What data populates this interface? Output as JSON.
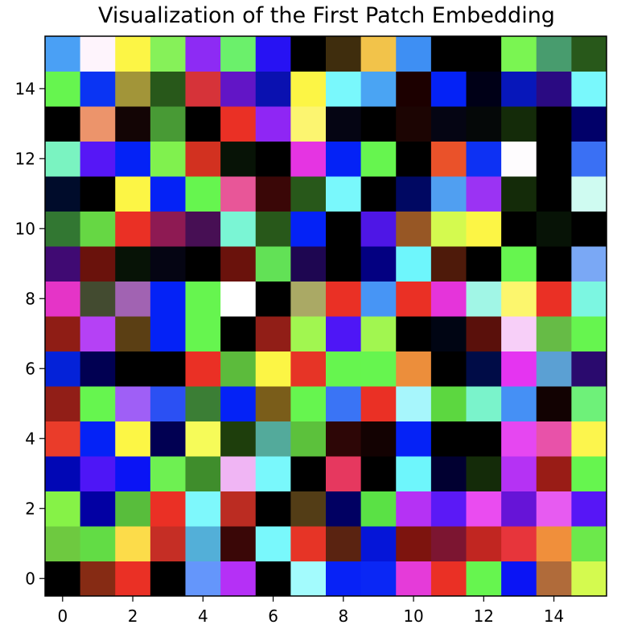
{
  "chart_data": {
    "type": "heatmap",
    "title": "Visualization of the First Patch Embedding",
    "xlabel": "",
    "ylabel": "",
    "xlim": [
      -0.5,
      15.5
    ],
    "ylim": [
      15.5,
      -0.5
    ],
    "x_ticks": [
      0,
      2,
      4,
      6,
      8,
      10,
      12,
      14
    ],
    "y_ticks": [
      0,
      2,
      4,
      6,
      8,
      10,
      12,
      14
    ],
    "grid": false,
    "rows": 16,
    "cols": 16,
    "cells": [
      [
        "#000000",
        "#862b14",
        "#ea3025",
        "#000000",
        "#6496fb",
        "#b530f6",
        "#000000",
        "#a3fbfd",
        "#0722f6",
        "#0a27f5",
        "#e53bd9",
        "#ea3025",
        "#66f54f",
        "#0a14f5",
        "#b06b3a",
        "#d4fa4f"
      ],
      [
        "#6ec940",
        "#62dc45",
        "#fcdc4a",
        "#c52e25",
        "#53afd8",
        "#3a0707",
        "#79f8fc",
        "#e63426",
        "#5a2311",
        "#0515d8",
        "#7d140e",
        "#7c1531",
        "#c12621",
        "#e7353b",
        "#f08f3b",
        "#6ce94b"
      ],
      [
        "#86f247",
        "#0200a3",
        "#58bd3c",
        "#ea3025",
        "#7ef8fc",
        "#bb2c22",
        "#000000",
        "#533d16",
        "#010062",
        "#5ae145",
        "#b532f4",
        "#5b19f6",
        "#ea4cf0",
        "#6614d7",
        "#e75bf1",
        "#5716f6"
      ],
      [
        "#0107b5",
        "#4e16f6",
        "#0a14f5",
        "#6ef052",
        "#3f8d2c",
        "#f0b5f4",
        "#79f8fc",
        "#000000",
        "#e6385f",
        "#000000",
        "#6ef6fc",
        "#010031",
        "#142b09",
        "#b532f4",
        "#991c16",
        "#66f54f"
      ],
      [
        "#ea3c2a",
        "#0422f6",
        "#fcf645",
        "#010052",
        "#f6fb59",
        "#1e3e0c",
        "#53aa9b",
        "#5cc13c",
        "#2d0606",
        "#130202",
        "#0522f6",
        "#000000",
        "#000000",
        "#e647f1",
        "#e852a9",
        "#fcf54d"
      ],
      [
        "#911e17",
        "#66f54f",
        "#9f5ff6",
        "#2b50f3",
        "#3b7e35",
        "#0422f6",
        "#7a5d1a",
        "#66f54f",
        "#3a74f5",
        "#ea3025",
        "#a7f6fc",
        "#5cd740",
        "#7af3cb",
        "#4590f5",
        "#120202",
        "#6ef179"
      ],
      [
        "#0422d8",
        "#010052",
        "#000000",
        "#000000",
        "#ea3025",
        "#5cbb3c",
        "#fcf545",
        "#e63426",
        "#66f54f",
        "#66f54f",
        "#ec8e3b",
        "#000000",
        "#000c47",
        "#e534f1",
        "#5ba0d3",
        "#2a0a6e"
      ],
      [
        "#8f1d15",
        "#b541f5",
        "#5b3f14",
        "#0422f6",
        "#66f54f",
        "#000000",
        "#911e17",
        "#a1f650",
        "#4e16f6",
        "#a1f650",
        "#000000",
        "#000513",
        "#5a100b",
        "#f7cff8",
        "#66bb46",
        "#66f54f"
      ],
      [
        "#e534c7",
        "#434b30",
        "#a163b2",
        "#0422f6",
        "#66f54f",
        "#ffffff",
        "#000000",
        "#aaa965",
        "#ea3025",
        "#4795f5",
        "#ea3025",
        "#e534da",
        "#a1f6e6",
        "#fcf66d",
        "#ea3025",
        "#7cf6e1"
      ],
      [
        "#400a73",
        "#6a120c",
        "#071306",
        "#050513",
        "#000000",
        "#6a120c",
        "#62e156",
        "#1e0651",
        "#000000",
        "#030081",
        "#6ef6fc",
        "#4e1a0a",
        "#000000",
        "#66f54f",
        "#000000",
        "#7aa8f5"
      ],
      [
        "#327732",
        "#66d744",
        "#ea3025",
        "#8e1a53",
        "#470f54",
        "#7af5d4",
        "#28581a",
        "#0422f6",
        "#000000",
        "#4e16e6",
        "#975725",
        "#d4fa4f",
        "#fcf545",
        "#000000",
        "#071306",
        "#000000"
      ],
      [
        "#000c2b",
        "#000000",
        "#fcf545",
        "#0422f6",
        "#66f54f",
        "#e85698",
        "#3a0707",
        "#28581a",
        "#79f8fc",
        "#000000",
        "#000862",
        "#509ff1",
        "#9b33f3",
        "#142b09",
        "#000000",
        "#cffbf1"
      ],
      [
        "#7af3c1",
        "#5617f6",
        "#0422f6",
        "#80f14e",
        "#d23120",
        "#071306",
        "#000000",
        "#e534e2",
        "#0422f6",
        "#66f54f",
        "#000000",
        "#ea522a",
        "#0d31f3",
        "#fefcfe",
        "#000000",
        "#3a70f4"
      ],
      [
        "#000000",
        "#ec946b",
        "#130505",
        "#489a35",
        "#000000",
        "#ea3025",
        "#8f26f4",
        "#fcf570",
        "#050513",
        "#000000",
        "#1c0503",
        "#050513",
        "#050808",
        "#142b09",
        "#000000",
        "#010069"
      ],
      [
        "#66f54f",
        "#0a34f3",
        "#a29539",
        "#28581a",
        "#d63339",
        "#6215c6",
        "#0a11b0",
        "#fcf545",
        "#79f8fc",
        "#4aa4f3",
        "#1c0000",
        "#0422f6",
        "#000017",
        "#0717ba",
        "#2a0a82",
        "#79f8fc"
      ],
      [
        "#4aa0f5",
        "#fef4fc",
        "#fcf545",
        "#86f159",
        "#8d2bf4",
        "#6bf06b",
        "#2712f3",
        "#000000",
        "#3f2d0d",
        "#f2c34a",
        "#3e8ff3",
        "#000000",
        "#000000",
        "#7af552",
        "#489c6e",
        "#28581a"
      ]
    ]
  }
}
